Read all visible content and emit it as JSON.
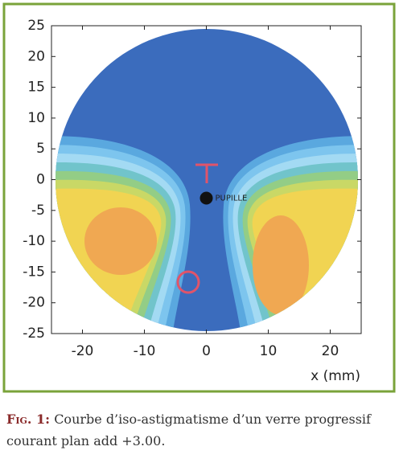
{
  "chart_data": {
    "type": "contour",
    "xlabel": "x (mm)",
    "xlim": [
      -25,
      25
    ],
    "ylim": [
      -25,
      25
    ],
    "xticks": [
      -20,
      -10,
      0,
      10,
      20
    ],
    "yticks": [
      -25,
      -20,
      -15,
      -10,
      -5,
      0,
      5,
      10,
      15,
      20,
      25
    ],
    "points": [
      {
        "x": 0,
        "y": -3,
        "label": "PUPILLE"
      }
    ]
  },
  "caption": {
    "label": "Fig. 1:",
    "text": "Courbe d’iso-astigmatisme d’un verre progressif courant plan add +3.00."
  }
}
